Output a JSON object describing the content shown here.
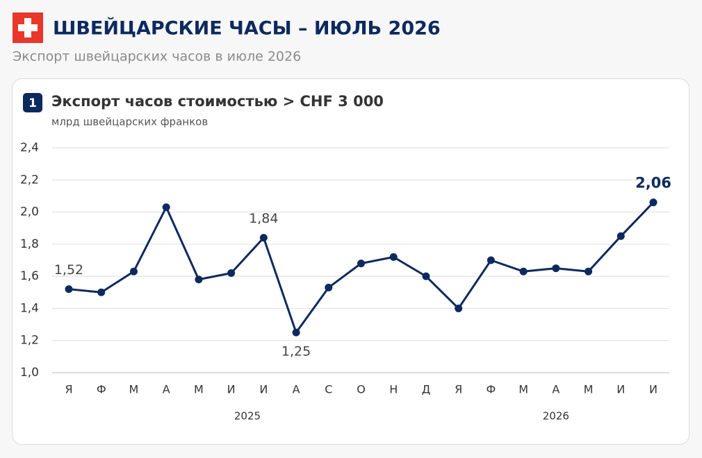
{
  "header": {
    "title": "ШВЕЙЦАРСКИЕ ЧАСЫ – ИЮЛЬ 2026",
    "subtitle": "Экспорт швейцарских часов в июле 2026"
  },
  "panel": {
    "number": "1"
  },
  "chart_data": {
    "type": "line",
    "title": "Экспорт часов стоимостью > CHF 3 000",
    "subtitle": "млрд швейцарских франков",
    "categories": [
      "Я",
      "Ф",
      "М",
      "А",
      "М",
      "И",
      "И",
      "А",
      "С",
      "О",
      "Н",
      "Д",
      "Я",
      "Ф",
      "М",
      "А",
      "М",
      "И",
      "И"
    ],
    "groups": [
      {
        "name": "2025",
        "count": 12
      },
      {
        "name": "2026",
        "count": 7
      }
    ],
    "series": [
      {
        "name": "Экспорт",
        "color": "#0d2a5e",
        "values": [
          1.52,
          1.5,
          1.63,
          2.03,
          1.58,
          1.62,
          1.84,
          1.25,
          1.53,
          1.68,
          1.72,
          1.6,
          1.4,
          1.7,
          1.63,
          1.65,
          1.63,
          1.85,
          2.06
        ],
        "value_labels": [
          "1,52",
          null,
          null,
          null,
          null,
          null,
          "1,84",
          "1,25",
          null,
          null,
          null,
          null,
          null,
          null,
          null,
          null,
          null,
          null,
          "2,06"
        ]
      }
    ],
    "ylim": [
      1.0,
      2.4
    ],
    "yticks": [
      {
        "value": 1.0,
        "label": "1,0"
      },
      {
        "value": 1.2,
        "label": "1,2"
      },
      {
        "value": 1.4,
        "label": "1,4"
      },
      {
        "value": 1.6,
        "label": "1,6"
      },
      {
        "value": 1.8,
        "label": "1,8"
      },
      {
        "value": 2.0,
        "label": "2,0"
      },
      {
        "value": 2.2,
        "label": "2,2"
      },
      {
        "value": 2.4,
        "label": "2,4"
      }
    ],
    "grid": true
  }
}
